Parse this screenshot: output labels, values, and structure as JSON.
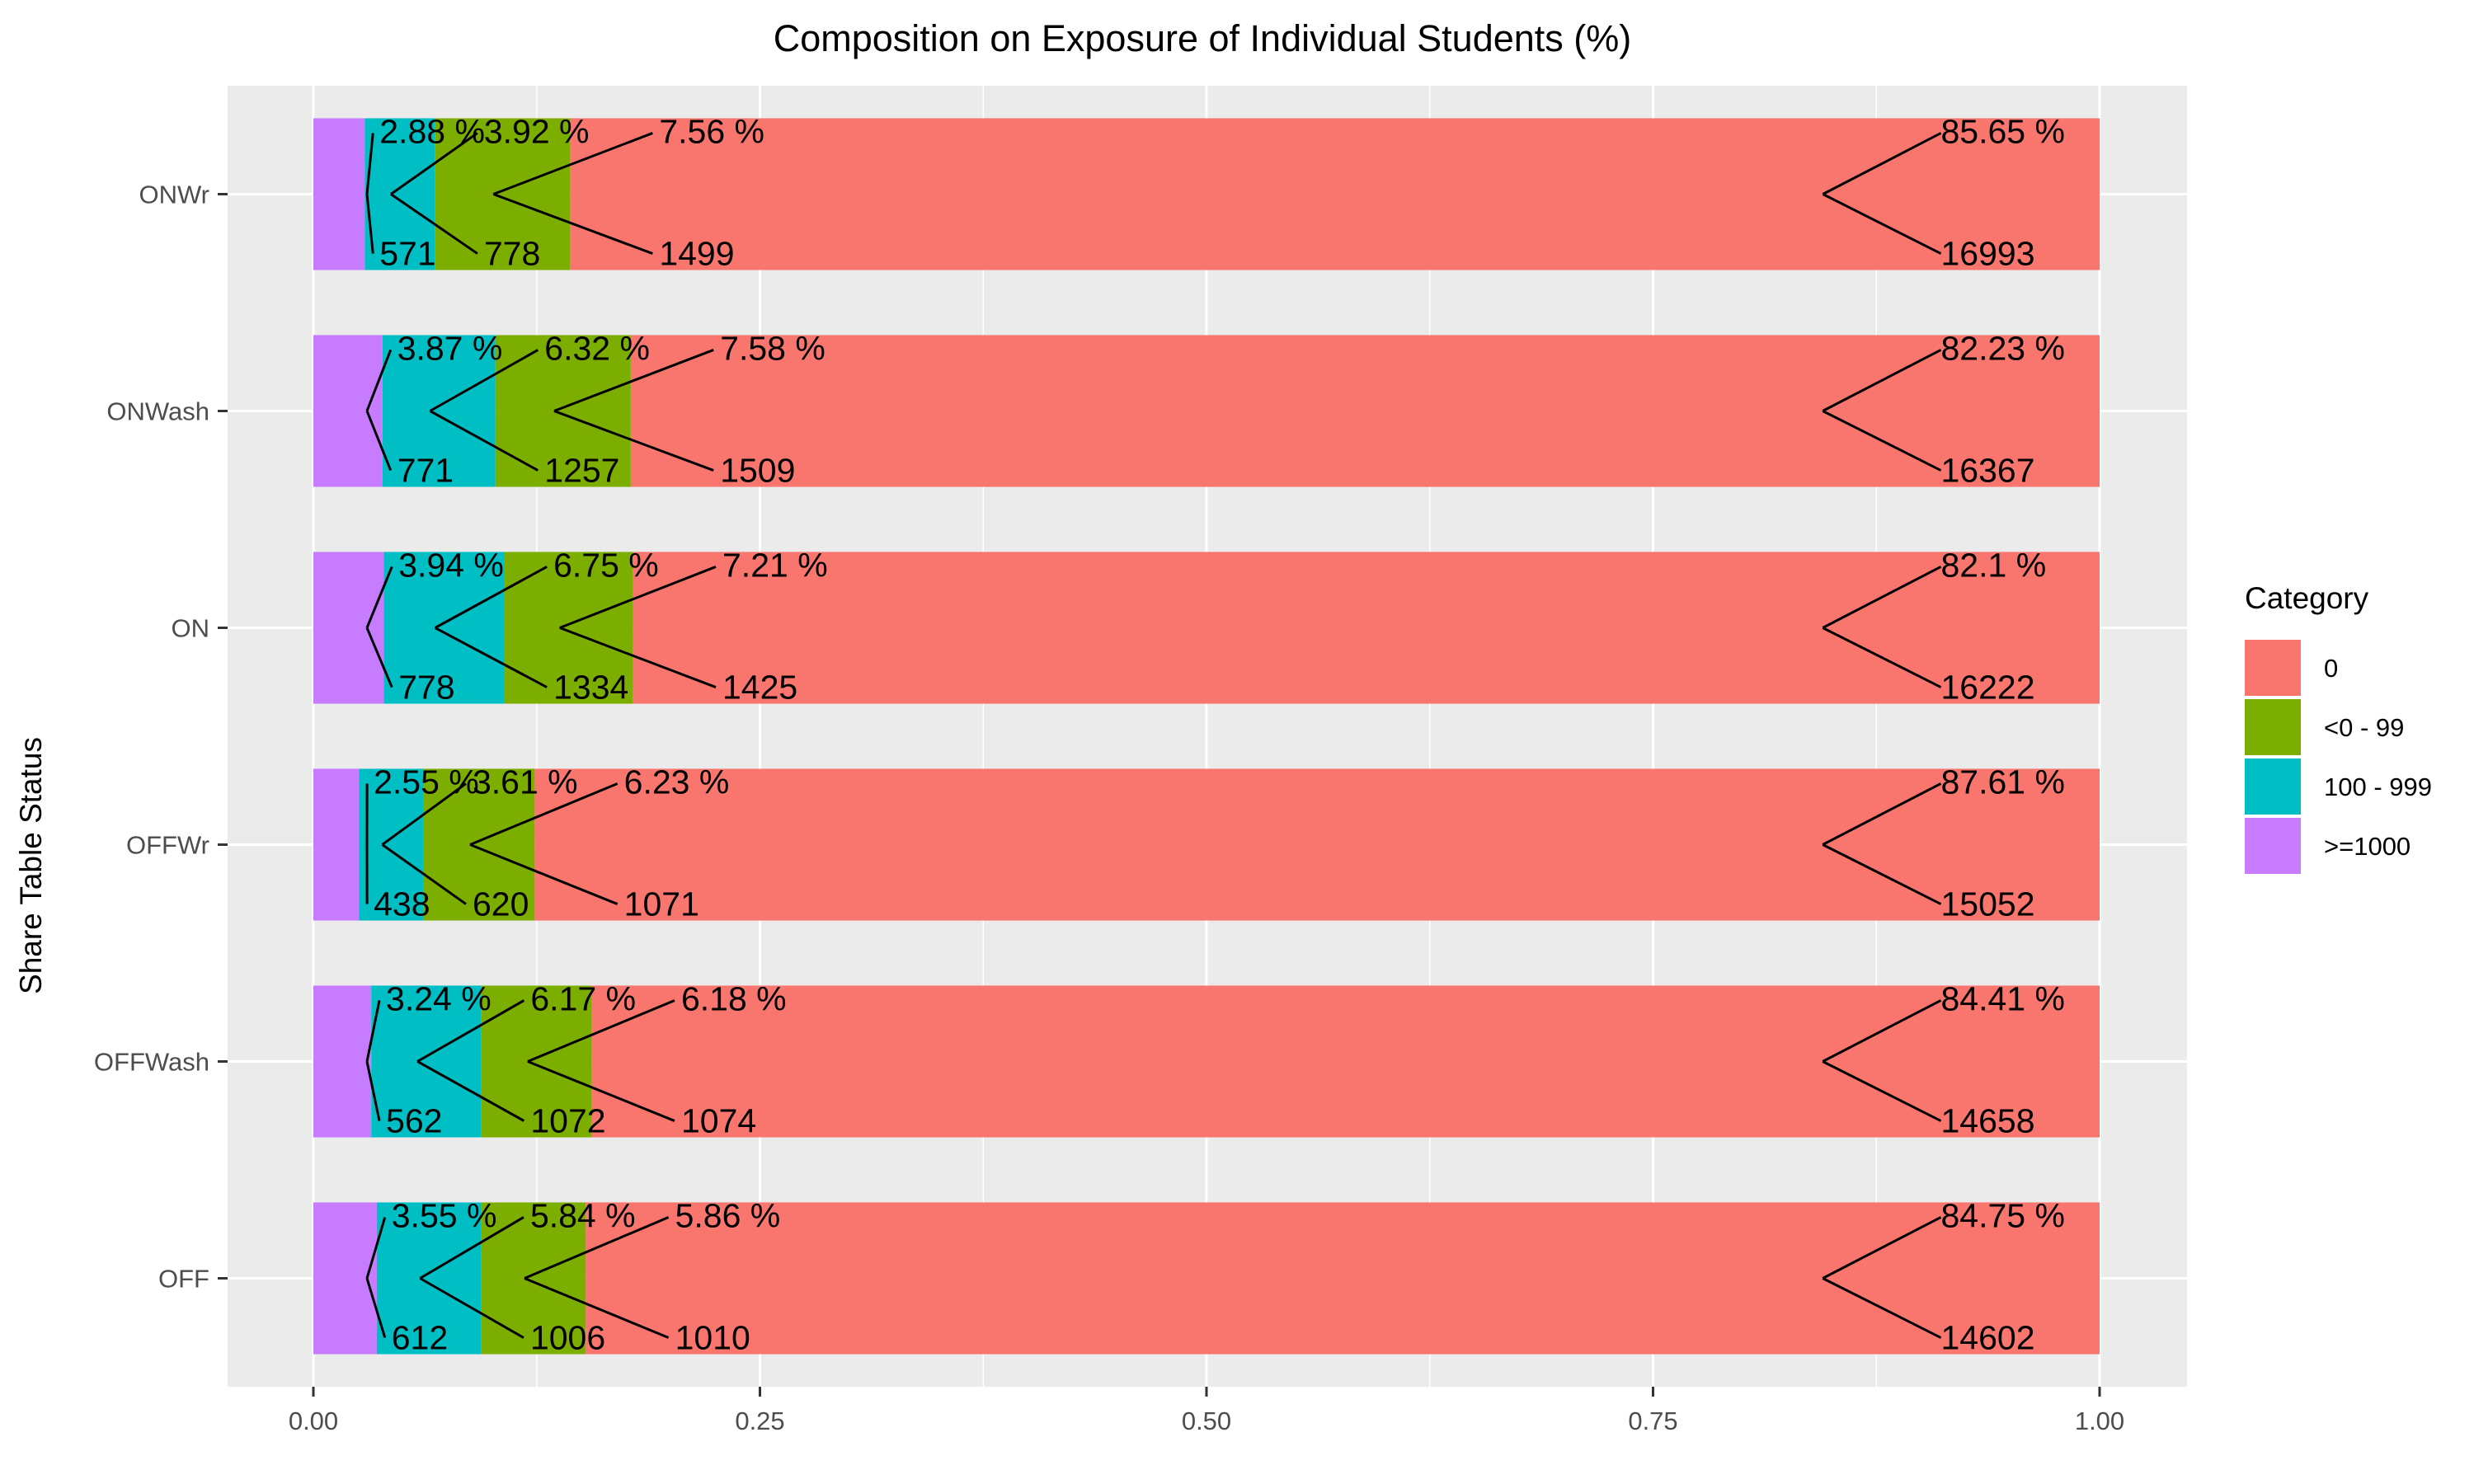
{
  "chart_data": {
    "type": "bar",
    "orientation": "horizontal",
    "stacked": true,
    "title": "Composition on Exposure of Individual Students (%)",
    "xlabel": "",
    "ylabel": "Share Table Status",
    "xlim": [
      0,
      1
    ],
    "x_ticks": [
      "0.00",
      "0.25",
      "0.50",
      "0.75",
      "1.00"
    ],
    "grid": true,
    "legend": {
      "title": "Category",
      "position": "right",
      "entries": [
        "0",
        "<0 - 99",
        "100 - 999",
        ">=1000"
      ]
    },
    "stack_order_left_to_right": [
      ">=1000",
      "100 - 999",
      "<0 - 99",
      "0"
    ],
    "categories": [
      "ONWr",
      "ONWash",
      "ON",
      "OFFWr",
      "OFFWash",
      "OFF"
    ],
    "series": [
      {
        "name": "0",
        "color": "#F8766D",
        "percent_labels": [
          "85.65 %",
          "82.23 %",
          "82.1 %",
          "87.61 %",
          "84.41 %",
          "84.75 %"
        ],
        "values": [
          0.8565,
          0.8223,
          0.821,
          0.8761,
          0.8441,
          0.8475
        ],
        "counts": [
          "16993",
          "16367",
          "16222",
          "15052",
          "14658",
          "14602"
        ]
      },
      {
        "name": "<0 - 99",
        "color": "#7CAE00",
        "percent_labels": [
          "7.56 %",
          "7.58 %",
          "7.21 %",
          "6.23 %",
          "6.18 %",
          "5.86 %"
        ],
        "values": [
          0.0756,
          0.0758,
          0.0721,
          0.0623,
          0.0618,
          0.0586
        ],
        "counts": [
          "1499",
          "1509",
          "1425",
          "1071",
          "1074",
          "1010"
        ]
      },
      {
        "name": "100 - 999",
        "color": "#00BFC4",
        "percent_labels": [
          "3.92 %",
          "6.32 %",
          "6.75 %",
          "3.61 %",
          "6.17 %",
          "5.84 %"
        ],
        "values": [
          0.0392,
          0.0632,
          0.0675,
          0.0361,
          0.0617,
          0.0584
        ],
        "counts": [
          "778",
          "1257",
          "1334",
          "620",
          "1072",
          "1006"
        ]
      },
      {
        "name": ">=1000",
        "color": "#C77CFF",
        "percent_labels": [
          "2.88 %",
          "3.87 %",
          "3.94 %",
          "2.55 %",
          "3.24 %",
          "3.55 %"
        ],
        "values": [
          0.0288,
          0.0387,
          0.0394,
          0.0255,
          0.0324,
          0.0355
        ],
        "counts": [
          "571",
          "771",
          "778",
          "438",
          "562",
          "612"
        ]
      }
    ]
  }
}
